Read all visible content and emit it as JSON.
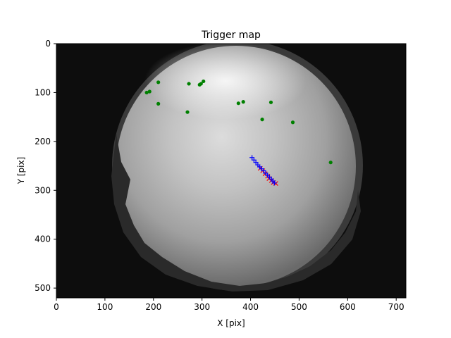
{
  "chart_data": {
    "type": "scatter",
    "title": "Trigger map",
    "xlabel": "X [pix]",
    "ylabel": "Y [pix]",
    "xlim": [
      0,
      720
    ],
    "ylim": [
      0,
      520
    ],
    "y_inverted": true,
    "grid": false,
    "xticks": [
      0,
      100,
      200,
      300,
      400,
      500,
      600,
      700
    ],
    "yticks": [
      0,
      100,
      200,
      300,
      400,
      500
    ],
    "background": "grayscale all-sky camera frame (fisheye)",
    "series": [
      {
        "color": "#008000",
        "marker": "dot",
        "points": [
          [
            210,
            79
          ],
          [
            192,
            98
          ],
          [
            186,
            100
          ],
          [
            210,
            123
          ],
          [
            273,
            82
          ],
          [
            270,
            140
          ],
          [
            295,
            84
          ],
          [
            298,
            82
          ],
          [
            303,
            77
          ],
          [
            375,
            122
          ],
          [
            385,
            119
          ],
          [
            442,
            120
          ],
          [
            424,
            155
          ],
          [
            487,
            161
          ],
          [
            565,
            243
          ]
        ]
      },
      {
        "color": "#ff0000",
        "marker": "x",
        "points": [
          [
            420,
            255
          ],
          [
            425,
            260
          ],
          [
            430,
            266
          ],
          [
            435,
            271
          ],
          [
            438,
            276
          ],
          [
            443,
            280
          ],
          [
            447,
            284
          ],
          [
            452,
            286
          ]
        ]
      },
      {
        "color": "#0000ff",
        "marker": "plus",
        "points": [
          [
            403,
            233
          ],
          [
            407,
            238
          ],
          [
            411,
            243
          ],
          [
            415,
            248
          ],
          [
            419,
            252
          ],
          [
            423,
            256
          ],
          [
            427,
            260
          ],
          [
            431,
            265
          ],
          [
            435,
            269
          ],
          [
            439,
            273
          ],
          [
            443,
            277
          ],
          [
            446,
            281
          ],
          [
            449,
            285
          ]
        ]
      }
    ]
  }
}
